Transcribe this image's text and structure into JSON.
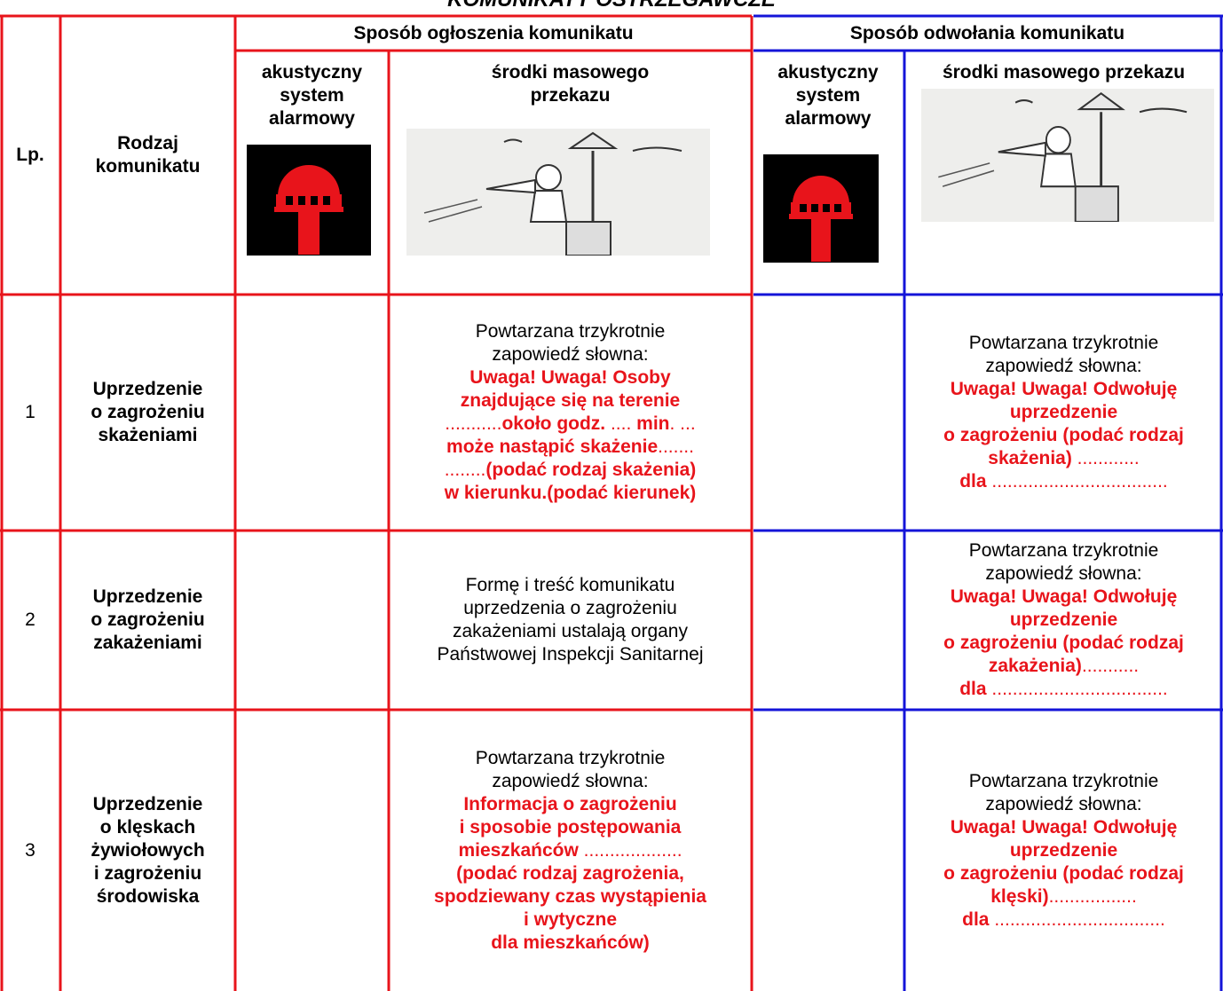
{
  "title": "KOMUNIKATY OSTRZEGAWCZE",
  "table": {
    "header": {
      "lp": "Lp.",
      "type": [
        "Rodzaj",
        "komunikatu"
      ],
      "announce": "Sposób ogłoszenia komunikatu",
      "revoke": "Sposób odwołania komunikatu",
      "announce_acoustic": [
        "akustyczny",
        "system",
        "alarmowy"
      ],
      "announce_media": [
        "środki masowego",
        "przekazu"
      ],
      "revoke_acoustic": [
        "akustyczny",
        "system",
        "alarmowy"
      ],
      "revoke_media": [
        "środki masowego przekazu"
      ]
    },
    "rows": [
      {
        "lp": "1",
        "type": [
          "Uprzedzenie",
          "o zagrożeniu",
          "skażeniami"
        ],
        "announce": [
          [
            {
              "text": "Powtarzana trzykrotnie",
              "style": "plain"
            }
          ],
          [
            {
              "text": "zapowiedź słowna:",
              "style": "plain"
            }
          ],
          [
            {
              "text": "Uwaga! Uwaga! Osoby",
              "style": "red-bold"
            }
          ],
          [
            {
              "text": "znajdujące się na terenie",
              "style": "red-bold"
            }
          ],
          [
            {
              "text": "...........",
              "style": "red"
            },
            {
              "text": "około godz.",
              "style": "red-bold"
            },
            {
              "text": " .... ",
              "style": "red"
            },
            {
              "text": "min",
              "style": "red-bold"
            },
            {
              "text": ". ...",
              "style": "red"
            }
          ],
          [
            {
              "text": "może nastąpić skażenie",
              "style": "red-bold"
            },
            {
              "text": ".......",
              "style": "red"
            }
          ],
          [
            {
              "text": "........",
              "style": "red"
            },
            {
              "text": "(podać rodzaj skażenia)",
              "style": "red-bold"
            }
          ],
          [
            {
              "text": "w kierunku.(podać kierunek)",
              "style": "red-bold"
            }
          ]
        ],
        "revoke": [
          [
            {
              "text": "Powtarzana trzykrotnie",
              "style": "plain"
            }
          ],
          [
            {
              "text": "zapowiedź słowna:",
              "style": "plain"
            }
          ],
          [
            {
              "text": "Uwaga! Uwaga! Odwołuję",
              "style": "red-bold"
            }
          ],
          [
            {
              "text": "uprzedzenie",
              "style": "red-bold"
            }
          ],
          [
            {
              "text": "o zagrożeniu (podać rodzaj",
              "style": "red-bold"
            }
          ],
          [
            {
              "text": "skażenia)",
              "style": "red-bold"
            },
            {
              "text": " ............",
              "style": "red"
            }
          ],
          [
            {
              "text": "dla",
              "style": "red-bold"
            },
            {
              "text": " ..................................",
              "style": "red"
            }
          ]
        ]
      },
      {
        "lp": "2",
        "type": [
          "Uprzedzenie",
          "o zagrożeniu",
          "zakażeniami"
        ],
        "announce": [
          [
            {
              "text": "Formę i treść komunikatu",
              "style": "plain"
            }
          ],
          [
            {
              "text": "uprzedzenia o zagrożeniu",
              "style": "plain"
            }
          ],
          [
            {
              "text": "zakażeniami ustalają organy",
              "style": "plain"
            }
          ],
          [
            {
              "text": "Państwowej Inspekcji Sanitarnej",
              "style": "plain"
            }
          ]
        ],
        "revoke": [
          [
            {
              "text": "Powtarzana trzykrotnie",
              "style": "plain"
            }
          ],
          [
            {
              "text": "zapowiedź słowna:",
              "style": "plain"
            }
          ],
          [
            {
              "text": "Uwaga! Uwaga! Odwołuję",
              "style": "red-bold"
            }
          ],
          [
            {
              "text": "uprzedzenie",
              "style": "red-bold"
            }
          ],
          [
            {
              "text": "o zagrożeniu (podać rodzaj",
              "style": "red-bold"
            }
          ],
          [
            {
              "text": "zakażenia)",
              "style": "red-bold"
            },
            {
              "text": "...........",
              "style": "red"
            }
          ],
          [
            {
              "text": "dla",
              "style": "red-bold"
            },
            {
              "text": " ..................................",
              "style": "red"
            }
          ]
        ]
      },
      {
        "lp": "3",
        "type": [
          "Uprzedzenie",
          "o klęskach",
          "żywiołowych",
          "i zagrożeniu",
          "środowiska"
        ],
        "announce": [
          [
            {
              "text": "Powtarzana trzykrotnie",
              "style": "plain"
            }
          ],
          [
            {
              "text": "zapowiedź słowna:",
              "style": "plain"
            }
          ],
          [
            {
              "text": "Informacja o zagrożeniu",
              "style": "red-bold"
            }
          ],
          [
            {
              "text": "i sposobie postępowania",
              "style": "red-bold"
            }
          ],
          [
            {
              "text": "mieszkańców",
              "style": "red-bold"
            },
            {
              "text": " ...................",
              "style": "red"
            }
          ],
          [
            {
              "text": "(podać rodzaj zagrożenia,",
              "style": "red-bold"
            }
          ],
          [
            {
              "text": "spodziewany czas wystąpienia",
              "style": "red-bold"
            }
          ],
          [
            {
              "text": "i wytyczne",
              "style": "red-bold"
            }
          ],
          [
            {
              "text": "dla mieszkańców)",
              "style": "red-bold"
            }
          ]
        ],
        "revoke": [
          [
            {
              "text": "Powtarzana trzykrotnie",
              "style": "plain"
            }
          ],
          [
            {
              "text": "zapowiedź słowna:",
              "style": "plain"
            }
          ],
          [
            {
              "text": "Uwaga! Uwaga! Odwołuję",
              "style": "red-bold"
            }
          ],
          [
            {
              "text": "uprzedzenie",
              "style": "red-bold"
            }
          ],
          [
            {
              "text": "o zagrożeniu (podać rodzaj",
              "style": "red-bold"
            }
          ],
          [
            {
              "text": "klęski)",
              "style": "red-bold"
            },
            {
              "text": ".................",
              "style": "red"
            }
          ],
          [
            {
              "text": "dla",
              "style": "red-bold"
            },
            {
              "text": " .................................",
              "style": "red"
            }
          ]
        ]
      }
    ]
  }
}
